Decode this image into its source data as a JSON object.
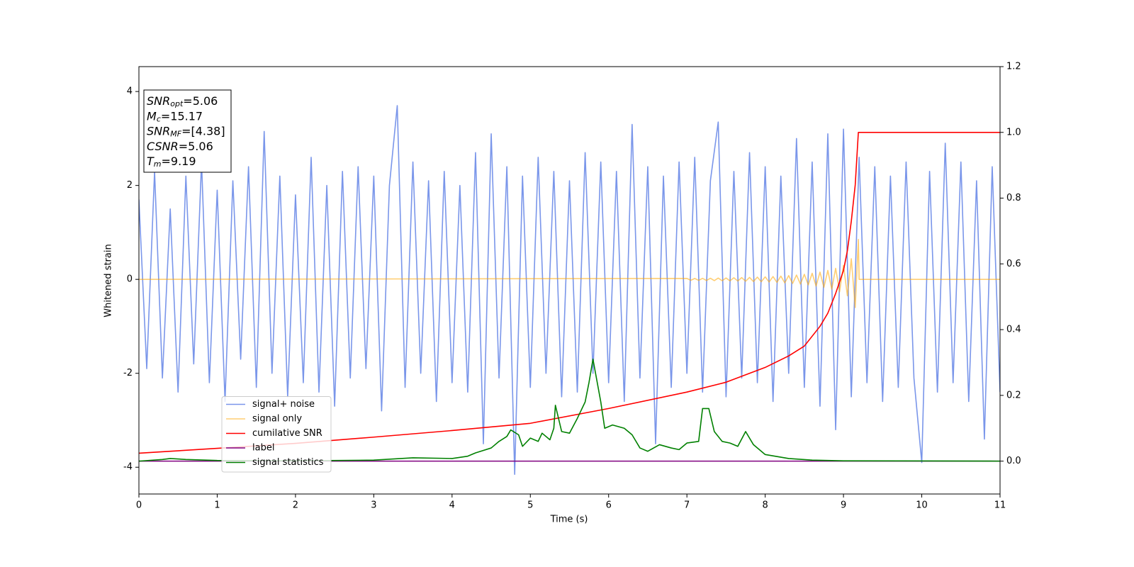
{
  "chart_data": {
    "type": "line",
    "xlabel": "Time (s)",
    "ylabel": "Whitened strain",
    "xlim": [
      0,
      11
    ],
    "ylim": [
      -4.57,
      4.53
    ],
    "y2lim": [
      -0.1,
      1.2
    ],
    "xticks": [
      0,
      1,
      2,
      3,
      4,
      5,
      6,
      7,
      8,
      9,
      10,
      11
    ],
    "yticks": [
      -4,
      -2,
      0,
      2,
      4
    ],
    "y2ticks": [
      {
        "value": 0,
        "label": "0.0"
      },
      0.2,
      0.4,
      0.6,
      0.8,
      {
        "value": 1,
        "label": "1.0"
      },
      1.2
    ],
    "legend_loc": "lower left",
    "info_box": [
      {
        "name": "SNR",
        "sub": "opt",
        "text": "=5.06"
      },
      {
        "name": "M",
        "sub": "c",
        "text": "=15.17"
      },
      {
        "name": "SNR",
        "sub": "MF",
        "text": "=[4.38]"
      },
      {
        "name": "CSNR",
        "text": "=5.06"
      },
      {
        "name": "T",
        "sub": "m",
        "text": "=9.19"
      }
    ],
    "series": [
      {
        "name": "signal+ noise",
        "color": "#4169e1",
        "opacity": 0.7,
        "x": [
          0,
          0.1,
          0.2,
          0.3,
          0.4,
          0.5,
          0.6,
          0.7,
          0.8,
          0.9,
          1,
          1.1,
          1.2,
          1.3,
          1.4,
          1.5,
          1.6,
          1.7,
          1.8,
          1.9,
          2,
          2.1,
          2.2,
          2.3,
          2.4,
          2.5,
          2.6,
          2.7,
          2.8,
          2.9,
          3,
          3.1,
          3.2,
          3.3,
          3.4,
          3.5,
          3.6,
          3.7,
          3.8,
          3.9,
          4,
          4.1,
          4.2,
          4.3,
          4.4,
          4.5,
          4.6,
          4.7,
          4.8,
          4.9,
          5,
          5.1,
          5.2,
          5.3,
          5.4,
          5.5,
          5.6,
          5.7,
          5.8,
          5.9,
          6,
          6.1,
          6.2,
          6.3,
          6.4,
          6.5,
          6.6,
          6.7,
          6.8,
          6.9,
          7,
          7.1,
          7.2,
          7.3,
          7.4,
          7.5,
          7.6,
          7.7,
          7.8,
          7.9,
          8,
          8.1,
          8.2,
          8.3,
          8.4,
          8.5,
          8.6,
          8.7,
          8.8,
          8.9,
          9,
          9.1,
          9.2,
          9.3,
          9.4,
          9.5,
          9.6,
          9.7,
          9.8,
          9.9,
          10,
          10.1,
          10.2,
          10.3,
          10.4,
          10.5,
          10.6,
          10.7,
          10.8,
          10.9,
          11
        ],
        "values": [
          1.7,
          -1.9,
          2.3,
          -2.1,
          1.5,
          -2.4,
          2.2,
          -1.8,
          2.5,
          -2.2,
          1.9,
          -2.6,
          2.1,
          -1.7,
          2.4,
          -2.3,
          3.15,
          -2.0,
          2.2,
          -2.5,
          1.8,
          -2.2,
          2.6,
          -2.4,
          2.0,
          -2.7,
          2.3,
          -2.1,
          2.4,
          -1.9,
          2.2,
          -2.8,
          2.0,
          3.7,
          -2.3,
          2.5,
          -2.0,
          2.1,
          -2.6,
          2.3,
          -2.2,
          2.0,
          -2.4,
          2.7,
          -3.5,
          3.1,
          -2.1,
          2.4,
          -4.15,
          2.2,
          -2.3,
          2.6,
          -2.0,
          2.3,
          -2.5,
          2.1,
          -2.4,
          2.7,
          -2.0,
          2.5,
          -2.2,
          2.3,
          -2.6,
          3.3,
          -2.1,
          2.4,
          -3.5,
          2.2,
          -2.3,
          2.5,
          -2.0,
          2.6,
          -2.4,
          2.1,
          3.35,
          -2.5,
          2.3,
          -2.1,
          2.7,
          -2.2,
          2.4,
          -2.6,
          2.2,
          -2.0,
          3.0,
          -2.3,
          2.5,
          -2.7,
          3.1,
          -3.2,
          3.2,
          -2.5,
          2.6,
          -2.2,
          2.4,
          -2.6,
          2.2,
          -2.3,
          2.5,
          -2.1,
          -3.9,
          2.3,
          -2.4,
          2.9,
          -2.2,
          2.5,
          -2.6,
          2.1,
          -3.4,
          2.4,
          -2.4
        ]
      },
      {
        "name": "signal only",
        "color": "#ffa500",
        "opacity": 0.55,
        "x": [
          0,
          7,
          7.05,
          7.1,
          7.15,
          7.2,
          7.25,
          7.3,
          7.35,
          7.4,
          7.45,
          7.5,
          7.55,
          7.6,
          7.65,
          7.7,
          7.75,
          7.8,
          7.85,
          7.9,
          7.95,
          8,
          8.05,
          8.1,
          8.15,
          8.2,
          8.25,
          8.3,
          8.35,
          8.4,
          8.45,
          8.5,
          8.55,
          8.6,
          8.65,
          8.7,
          8.75,
          8.8,
          8.85,
          8.9,
          8.95,
          9,
          9.05,
          9.1,
          9.15,
          9.19,
          9.2,
          11
        ],
        "values": [
          0,
          0.02,
          -0.02,
          0.02,
          -0.022,
          0.022,
          -0.024,
          0.025,
          -0.026,
          0.028,
          -0.029,
          0.03,
          -0.032,
          0.034,
          -0.036,
          0.038,
          -0.04,
          0.042,
          -0.045,
          0.048,
          -0.05,
          0.053,
          -0.057,
          0.06,
          -0.065,
          0.07,
          -0.075,
          0.08,
          -0.086,
          0.092,
          -0.1,
          0.108,
          -0.118,
          0.13,
          -0.142,
          0.155,
          -0.17,
          0.19,
          -0.21,
          0.235,
          -0.265,
          0.3,
          -0.35,
          0.44,
          -0.6,
          0.85,
          0,
          0
        ]
      },
      {
        "name": "cumilative SNR",
        "color": "#ff0000",
        "axis": "y2",
        "x": [
          0,
          1,
          2,
          3,
          4,
          5,
          6,
          7,
          7.5,
          8,
          8.3,
          8.5,
          8.7,
          8.8,
          8.9,
          9,
          9.05,
          9.1,
          9.15,
          9.19,
          11
        ],
        "values": [
          0.024,
          0.039,
          0.054,
          0.073,
          0.093,
          0.115,
          0.16,
          0.21,
          0.24,
          0.285,
          0.32,
          0.35,
          0.41,
          0.45,
          0.51,
          0.58,
          0.64,
          0.73,
          0.84,
          1,
          1
        ]
      },
      {
        "name": "label",
        "color": "#800080",
        "axis": "y2",
        "x": [
          0,
          11
        ],
        "values": [
          0,
          0
        ]
      },
      {
        "name": "signal statistics",
        "color": "#008000",
        "axis": "y2",
        "x": [
          0,
          0.3,
          0.4,
          0.6,
          1,
          2,
          3,
          3.5,
          4,
          4.2,
          4.3,
          4.5,
          4.6,
          4.7,
          4.75,
          4.85,
          4.9,
          5,
          5.1,
          5.15,
          5.25,
          5.3,
          5.32,
          5.4,
          5.5,
          5.6,
          5.7,
          5.75,
          5.8,
          5.9,
          5.95,
          6.05,
          6.2,
          6.3,
          6.4,
          6.5,
          6.65,
          6.8,
          6.9,
          7,
          7.15,
          7.2,
          7.28,
          7.35,
          7.45,
          7.55,
          7.65,
          7.75,
          7.85,
          8,
          8.3,
          8.6,
          9,
          11
        ],
        "values": [
          0,
          0.005,
          0.008,
          0.005,
          0.002,
          0.001,
          0.003,
          0.01,
          0.008,
          0.015,
          0.025,
          0.04,
          0.06,
          0.075,
          0.095,
          0.08,
          0.045,
          0.07,
          0.06,
          0.085,
          0.065,
          0.1,
          0.17,
          0.09,
          0.085,
          0.13,
          0.18,
          0.24,
          0.31,
          0.18,
          0.1,
          0.11,
          0.1,
          0.08,
          0.04,
          0.03,
          0.05,
          0.04,
          0.035,
          0.055,
          0.06,
          0.16,
          0.16,
          0.09,
          0.06,
          0.055,
          0.045,
          0.09,
          0.05,
          0.02,
          0.008,
          0.003,
          0.001,
          0
        ]
      }
    ]
  }
}
